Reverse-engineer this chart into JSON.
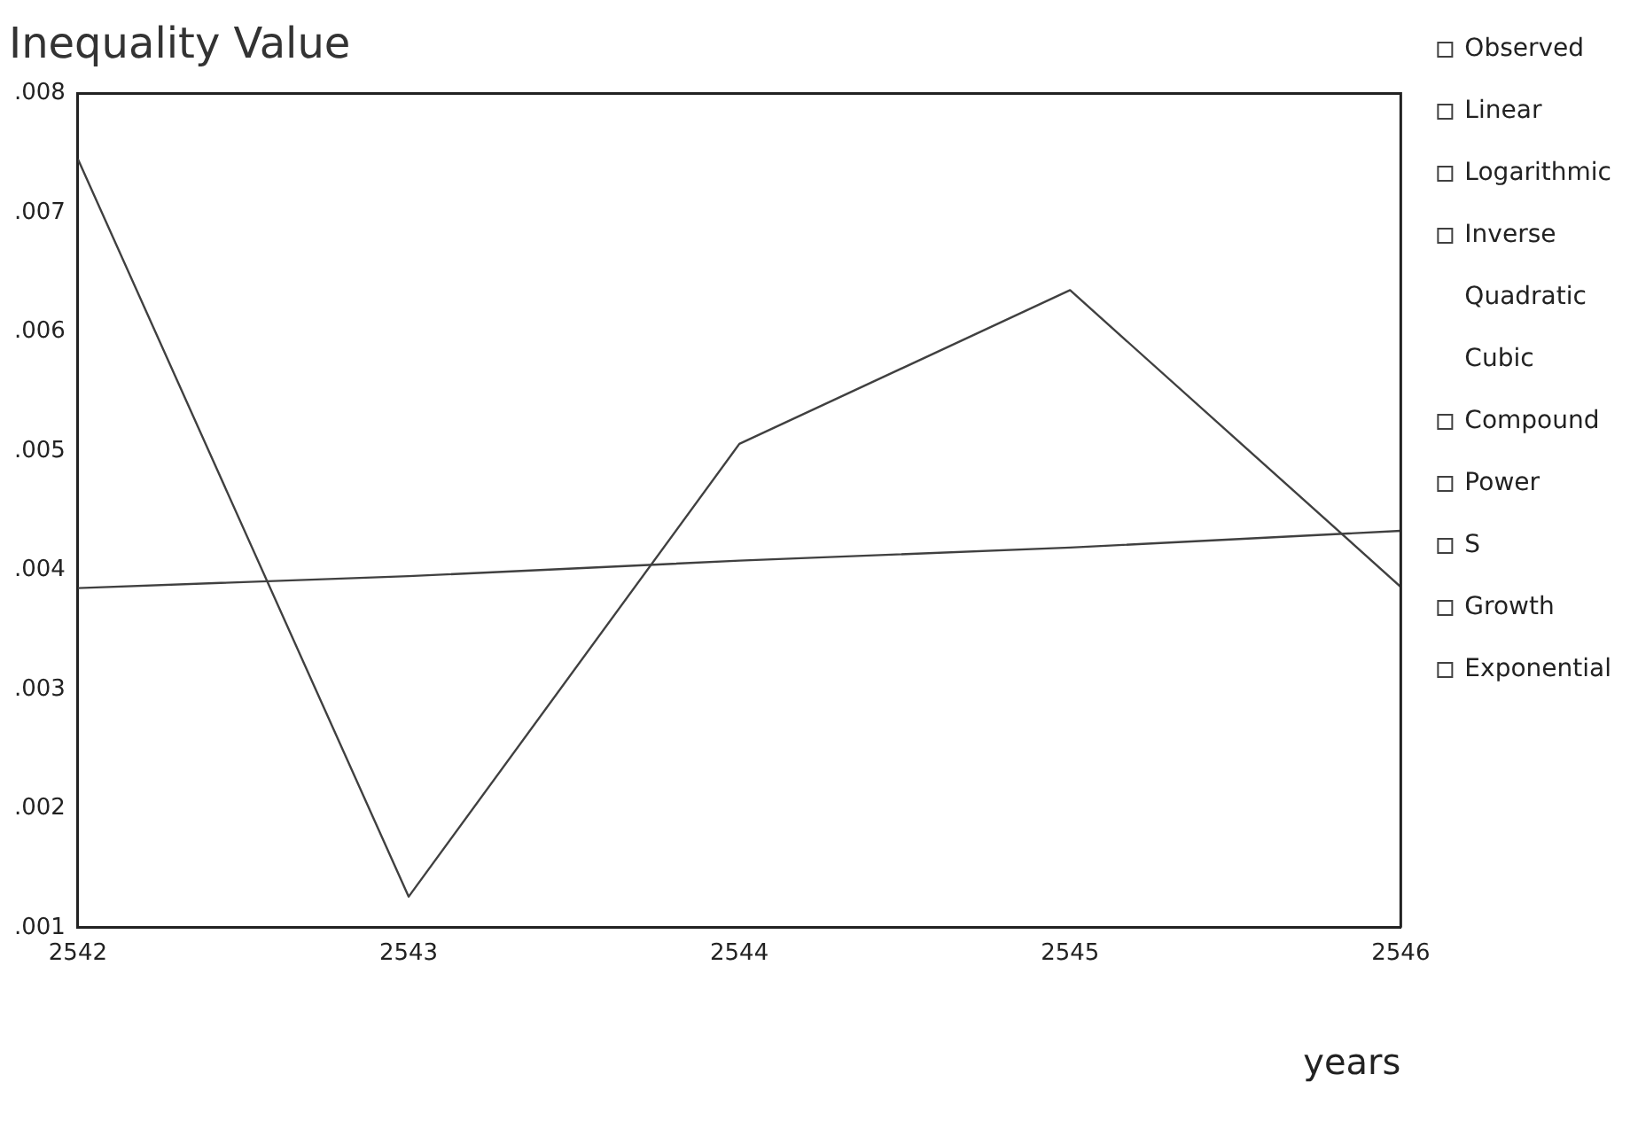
{
  "chart_data": {
    "type": "line",
    "title": "Inequality Value",
    "xlabel": "years",
    "x": [
      2542,
      2543,
      2544,
      2545,
      2546
    ],
    "series": [
      {
        "name": "Observed",
        "color": "#404040",
        "values": [
          0.00745,
          0.00126,
          0.00506,
          0.00635,
          0.00386
        ]
      },
      {
        "name": "Linear",
        "color": "#404040",
        "values": [
          0.00385,
          0.00395,
          0.00408,
          0.00419,
          0.00433
        ]
      },
      {
        "name": "Logarithmic",
        "color": "#404040",
        "values": [
          null,
          null,
          null,
          null,
          null
        ]
      },
      {
        "name": "Inverse",
        "color": "#404040",
        "values": [
          null,
          null,
          null,
          null,
          null
        ]
      },
      {
        "name": "Quadratic",
        "values": [
          null,
          null,
          null,
          null,
          null
        ]
      },
      {
        "name": "Cubic",
        "values": [
          null,
          null,
          null,
          null,
          null
        ]
      },
      {
        "name": "Compound",
        "color": "#404040",
        "values": [
          null,
          null,
          null,
          null,
          null
        ]
      },
      {
        "name": "Power",
        "color": "#404040",
        "values": [
          null,
          null,
          null,
          null,
          null
        ]
      },
      {
        "name": "S",
        "color": "#404040",
        "values": [
          null,
          null,
          null,
          null,
          null
        ]
      },
      {
        "name": "Growth",
        "color": "#404040",
        "values": [
          null,
          null,
          null,
          null,
          null
        ]
      },
      {
        "name": "Exponential",
        "color": "#404040",
        "values": [
          null,
          null,
          null,
          null,
          null
        ]
      }
    ],
    "xlim": [
      2542,
      2546
    ],
    "xticks": [
      2542,
      2543,
      2544,
      2545,
      2546
    ],
    "ylim": [
      0.001,
      0.008
    ],
    "yticks": [
      {
        "value": 0.001,
        "label": ".001"
      },
      {
        "value": 0.002,
        "label": ".002"
      },
      {
        "value": 0.003,
        "label": ".003"
      },
      {
        "value": 0.004,
        "label": ".004"
      },
      {
        "value": 0.005,
        "label": ".005"
      },
      {
        "value": 0.006,
        "label": ".006"
      },
      {
        "value": 0.007,
        "label": ".007"
      },
      {
        "value": 0.008,
        "label": ".008"
      }
    ],
    "legend": "right",
    "marker": "none",
    "line_style": "solid"
  }
}
